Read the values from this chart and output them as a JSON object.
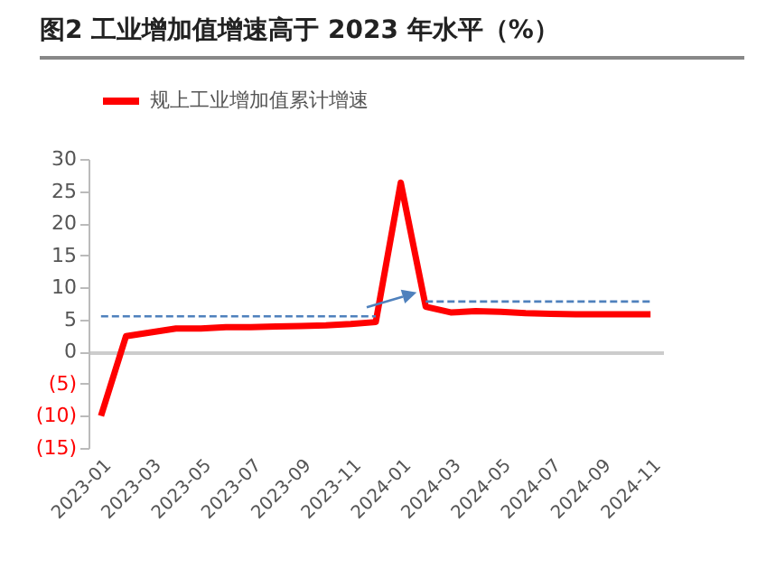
{
  "chart_data": {
    "type": "line",
    "title": "图2  工业增加值增速高于 2023 年水平（%）",
    "categories": [
      "2023-01",
      null,
      "2023-03",
      null,
      "2023-05",
      null,
      "2023-07",
      null,
      "2023-09",
      null,
      "2023-11",
      null,
      "2024-01",
      null,
      "2024-03",
      null,
      "2024-05",
      null,
      "2024-07",
      null,
      "2024-09",
      null,
      "2024-11"
    ],
    "series": [
      {
        "name": "规上工业增加值累计增速",
        "color": "#ff0000",
        "values": [
          -10,
          2.4,
          3.0,
          3.6,
          3.6,
          3.8,
          3.8,
          3.9,
          4.0,
          4.1,
          4.3,
          4.6,
          26.3,
          7.0,
          6.1,
          6.3,
          6.2,
          6.0,
          5.9,
          5.8,
          5.8,
          5.8,
          5.8
        ]
      },
      {
        "color": "#4f81bd",
        "line_style": "dashed",
        "values": [
          5.5,
          5.5,
          5.5,
          5.5,
          5.5,
          5.5,
          5.5,
          5.5,
          5.5,
          5.5,
          5.5,
          5.5,
          null,
          null,
          null,
          null,
          null,
          null,
          null,
          null,
          null,
          null,
          null
        ]
      },
      {
        "color": "#4f81bd",
        "line_style": "dashed",
        "values": [
          null,
          null,
          null,
          null,
          null,
          null,
          null,
          null,
          null,
          null,
          null,
          null,
          null,
          7.8,
          7.8,
          7.8,
          7.8,
          7.8,
          7.8,
          7.8,
          7.8,
          7.8,
          7.8
        ]
      }
    ],
    "ylim": [
      -15,
      30
    ],
    "yticks": [
      {
        "value": -15,
        "label": "(15)"
      },
      {
        "value": -10,
        "label": "(10)"
      },
      {
        "value": -5,
        "label": "(5)"
      },
      0,
      5,
      10,
      15,
      20,
      25,
      30
    ],
    "legend": "top",
    "marker": "none",
    "line_style": "solid"
  }
}
